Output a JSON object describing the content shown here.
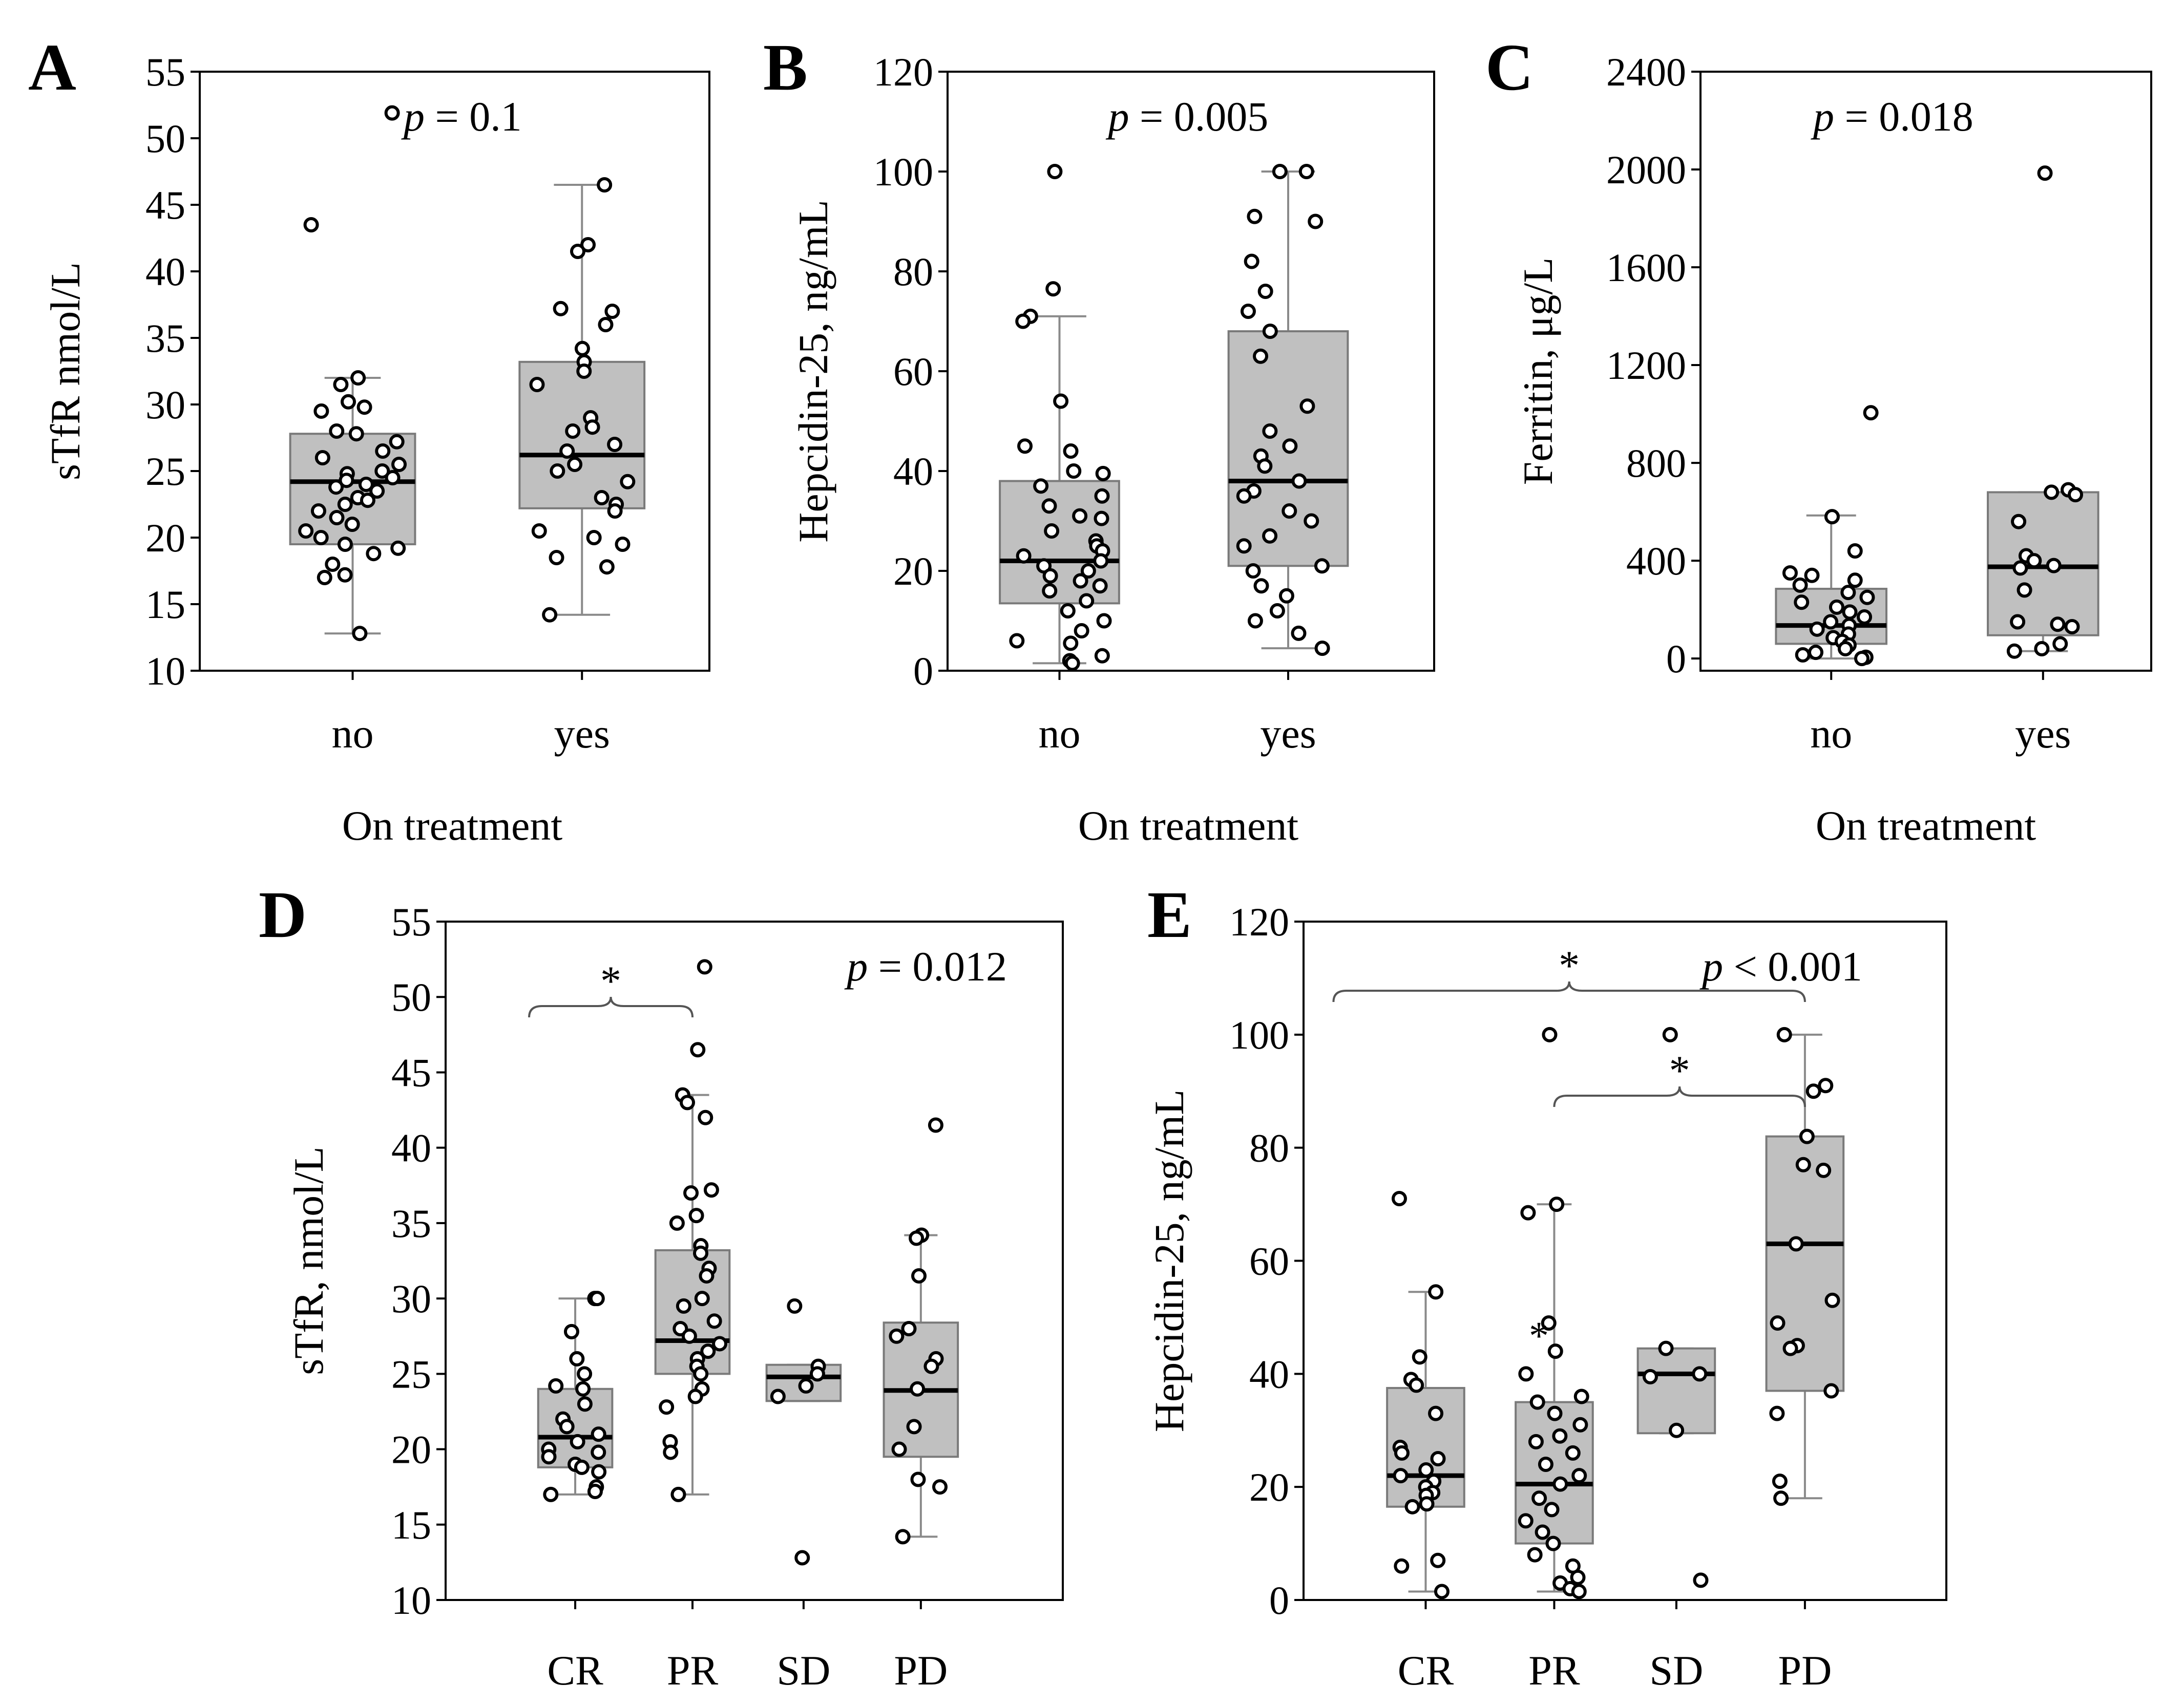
{
  "chart_data": [
    {
      "type": "box",
      "panel": "A",
      "title": "",
      "xlabel": "On treatment",
      "ylabel": "sTfR nmol/L",
      "ylim": [
        10,
        55
      ],
      "yticks": [
        10,
        15,
        20,
        25,
        30,
        35,
        40,
        45,
        50,
        55
      ],
      "p_label": "p",
      "p_text": " = 0.1",
      "categories": [
        "no",
        "yes"
      ],
      "boxes": [
        {
          "q1": 19.5,
          "median": 24.2,
          "q3": 27.8,
          "whisker_low": 12.8,
          "whisker_high": 32.0,
          "points": [
            51.9,
            43.5,
            32.0,
            31.5,
            30.2,
            29.8,
            29.5,
            28.0,
            27.8,
            27.2,
            26.5,
            26.0,
            25.5,
            25.0,
            24.8,
            24.5,
            24.3,
            24.0,
            23.8,
            23.5,
            23.0,
            22.8,
            22.5,
            22.0,
            21.5,
            21.0,
            20.5,
            20.0,
            19.5,
            19.2,
            18.8,
            18.0,
            17.2,
            17.0,
            12.8
          ]
        },
        {
          "q1": 22.2,
          "median": 26.2,
          "q3": 33.2,
          "whisker_low": 14.2,
          "whisker_high": 46.5,
          "points": [
            46.5,
            42.0,
            41.5,
            37.2,
            37.0,
            36.0,
            34.2,
            33.2,
            32.5,
            31.5,
            29.0,
            28.3,
            28.0,
            27.0,
            26.5,
            25.5,
            25.0,
            24.2,
            23.0,
            22.5,
            22.0,
            20.5,
            20.0,
            19.5,
            18.5,
            17.8,
            14.2
          ]
        }
      ]
    },
    {
      "type": "box",
      "panel": "B",
      "title": "",
      "xlabel": "On treatment",
      "ylabel": "Hepcidin-25, ng/mL",
      "ylim": [
        0,
        120
      ],
      "yticks": [
        0,
        20,
        40,
        60,
        80,
        100,
        120
      ],
      "p_label": "p",
      "p_text": " = 0.005",
      "categories": [
        "no",
        "yes"
      ],
      "boxes": [
        {
          "q1": 13.5,
          "median": 22.0,
          "q3": 38.0,
          "whisker_low": 1.5,
          "whisker_high": 71.0,
          "points": [
            100.0,
            76.5,
            71.0,
            70.0,
            54.0,
            45.0,
            44.0,
            40.0,
            39.5,
            37.0,
            35.0,
            33.0,
            31.0,
            30.5,
            28.0,
            26.0,
            25.0,
            24.0,
            23.0,
            22.0,
            21.0,
            20.0,
            19.0,
            18.0,
            17.0,
            16.0,
            14.0,
            12.0,
            10.0,
            8.0,
            6.0,
            5.5,
            3.0,
            2.0,
            1.5
          ]
        },
        {
          "q1": 21.0,
          "median": 38.0,
          "q3": 68.0,
          "whisker_low": 4.5,
          "whisker_high": 100.0,
          "points": [
            100.0,
            100.0,
            91.0,
            90.0,
            82.0,
            76.0,
            72.0,
            68.0,
            63.0,
            53.0,
            48.0,
            45.0,
            43.0,
            41.0,
            38.0,
            36.0,
            35.0,
            32.0,
            30.0,
            27.0,
            25.0,
            21.0,
            20.0,
            17.0,
            15.0,
            12.0,
            10.0,
            7.5,
            4.5
          ]
        }
      ]
    },
    {
      "type": "box",
      "panel": "C",
      "title": "",
      "xlabel": "On treatment",
      "ylabel": "Ferritin, μg/L",
      "ylim": [
        -50,
        2400
      ],
      "yticks": [
        0,
        400,
        800,
        1200,
        1600,
        2000,
        2400
      ],
      "p_label": "p",
      "p_text": " = 0.018",
      "categories": [
        "no",
        "yes"
      ],
      "boxes": [
        {
          "q1": 60,
          "median": 135,
          "q3": 285,
          "whisker_low": 0,
          "whisker_high": 585,
          "points": [
            1005,
            580,
            440,
            350,
            340,
            320,
            300,
            270,
            250,
            230,
            210,
            190,
            170,
            150,
            135,
            120,
            100,
            85,
            70,
            55,
            40,
            25,
            15,
            5,
            0
          ]
        },
        {
          "q1": 95,
          "median": 375,
          "q3": 680,
          "whisker_low": 30,
          "whisker_high": 680,
          "points": [
            1985,
            690,
            680,
            670,
            560,
            420,
            400,
            380,
            370,
            280,
            150,
            140,
            130,
            60,
            40,
            30
          ]
        }
      ]
    },
    {
      "type": "box",
      "panel": "D",
      "title": "",
      "xlabel": "",
      "ylabel": "sTfR, nmol/L",
      "ylim": [
        10,
        55
      ],
      "yticks": [
        10,
        15,
        20,
        25,
        30,
        35,
        40,
        45,
        50,
        55
      ],
      "p_label": "p",
      "p_text": " = 0.012",
      "categories": [
        "CR",
        "PR",
        "SD",
        "PD"
      ],
      "boxes": [
        {
          "q1": 18.8,
          "median": 20.8,
          "q3": 24.0,
          "whisker_low": 17.0,
          "whisker_high": 30.0,
          "points": [
            30.0,
            30.0,
            27.8,
            26.0,
            25.0,
            24.2,
            24.0,
            23.0,
            22.0,
            21.5,
            21.0,
            20.5,
            20.0,
            19.8,
            19.5,
            19.0,
            18.8,
            18.5,
            17.5,
            17.2,
            17.0
          ]
        },
        {
          "q1": 25.0,
          "median": 27.2,
          "q3": 33.2,
          "whisker_low": 17.0,
          "whisker_high": 43.5,
          "points": [
            52.0,
            46.5,
            43.5,
            43.0,
            42.0,
            37.2,
            37.0,
            35.5,
            35.0,
            33.5,
            33.0,
            32.0,
            31.5,
            30.0,
            29.5,
            28.5,
            28.0,
            27.5,
            27.0,
            26.5,
            26.0,
            25.5,
            25.0,
            24.0,
            23.5,
            22.8,
            20.5,
            19.8,
            17.0
          ]
        },
        {
          "q1": 23.2,
          "median": 24.8,
          "q3": 25.6,
          "whisker_low": 23.2,
          "whisker_high": 25.6,
          "points": [
            29.5,
            25.5,
            25.0,
            24.2,
            23.5,
            12.8
          ]
        },
        {
          "q1": 19.5,
          "median": 23.9,
          "q3": 28.4,
          "whisker_low": 14.2,
          "whisker_high": 34.2,
          "points": [
            41.5,
            34.2,
            34.0,
            31.5,
            28.0,
            27.5,
            26.0,
            25.5,
            24.0,
            21.5,
            20.0,
            18.0,
            17.5,
            14.2
          ]
        }
      ],
      "annotations": [
        {
          "text": "*",
          "from": "CR",
          "to": "PR"
        }
      ]
    },
    {
      "type": "box",
      "panel": "E",
      "title": "",
      "xlabel": "",
      "ylabel": "Hepcidin-25, ng/mL",
      "ylim": [
        0,
        120
      ],
      "yticks": [
        0,
        20,
        40,
        60,
        80,
        100,
        120
      ],
      "p_label": "p",
      "p_text": " < 0.001",
      "categories": [
        "CR",
        "PR",
        "SD",
        "PD"
      ],
      "boxes": [
        {
          "q1": 16.5,
          "median": 22.0,
          "q3": 37.5,
          "whisker_low": 1.5,
          "whisker_high": 54.5,
          "points": [
            71.0,
            54.5,
            43.0,
            39.0,
            38.0,
            33.0,
            27.0,
            26.0,
            25.0,
            23.0,
            22.0,
            21.0,
            20.0,
            19.0,
            18.5,
            17.0,
            16.5,
            7.0,
            6.0,
            1.5
          ]
        },
        {
          "q1": 10.0,
          "median": 20.5,
          "q3": 35.0,
          "whisker_low": 1.5,
          "whisker_high": 70.0,
          "points": [
            100.0,
            70.0,
            68.5,
            49.0,
            44.0,
            40.0,
            36.0,
            35.0,
            33.0,
            31.0,
            29.0,
            28.0,
            26.0,
            24.0,
            22.0,
            20.5,
            18.0,
            16.0,
            14.0,
            12.0,
            10.0,
            8.0,
            6.0,
            4.0,
            3.0,
            2.0,
            1.5
          ]
        },
        {
          "q1": 29.5,
          "median": 40.0,
          "q3": 44.5,
          "whisker_low": 29.5,
          "whisker_high": 44.5,
          "points": [
            100.0,
            44.5,
            40.0,
            39.5,
            30.0,
            3.5
          ]
        },
        {
          "q1": 37.0,
          "median": 63.0,
          "q3": 82.0,
          "whisker_low": 18.0,
          "whisker_high": 100.0,
          "points": [
            100.0,
            91.0,
            90.0,
            82.0,
            77.0,
            76.0,
            63.0,
            53.0,
            49.0,
            45.0,
            44.5,
            37.0,
            33.0,
            21.0,
            18.0
          ]
        }
      ],
      "annotations": [
        {
          "text": "*",
          "from": "CR",
          "to": "PD"
        },
        {
          "text": "*",
          "from": "PR",
          "to": "PD"
        }
      ],
      "extra_marks": [
        {
          "text": "*",
          "category": "PR",
          "y": 48
        }
      ]
    }
  ]
}
